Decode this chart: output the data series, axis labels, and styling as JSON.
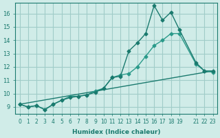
{
  "xlabel": "Humidex (Indice chaleur)",
  "ylabel": "",
  "bg_color": "#d0ece8",
  "grid_color": "#a0ccc8",
  "line_color": "#1a7a6e",
  "line_color2": "#2a9a8a",
  "xlim": [
    -0.5,
    23.5
  ],
  "ylim": [
    8.5,
    16.8
  ],
  "xticks": [
    0,
    1,
    2,
    3,
    4,
    5,
    6,
    7,
    8,
    9,
    10,
    11,
    12,
    13,
    14,
    15,
    16,
    17,
    18,
    19,
    21,
    22,
    23
  ],
  "yticks": [
    9,
    10,
    11,
    12,
    13,
    14,
    15,
    16
  ],
  "line1_x": [
    0,
    1,
    2,
    3,
    4,
    5,
    6,
    7,
    8,
    9,
    10,
    11,
    12,
    13,
    14,
    15,
    16,
    17,
    18,
    19,
    21,
    22,
    23
  ],
  "line1_y": [
    9.2,
    9.0,
    9.1,
    8.8,
    9.2,
    9.5,
    9.7,
    9.8,
    9.9,
    10.1,
    10.4,
    11.2,
    11.3,
    13.2,
    13.8,
    14.5,
    16.6,
    15.5,
    16.1,
    14.8,
    12.3,
    11.7,
    11.7
  ],
  "line2_x": [
    0,
    1,
    2,
    3,
    4,
    5,
    6,
    7,
    8,
    9,
    10,
    11,
    12,
    13,
    14,
    15,
    16,
    17,
    18,
    19,
    21,
    22,
    23
  ],
  "line2_y": [
    9.2,
    9.0,
    9.1,
    8.8,
    9.2,
    9.5,
    9.8,
    9.8,
    9.9,
    10.2,
    10.4,
    11.2,
    11.4,
    11.5,
    12.0,
    12.8,
    13.6,
    14.0,
    14.5,
    14.5,
    12.2,
    11.7,
    11.6
  ],
  "line3_x": [
    0,
    23
  ],
  "line3_y": [
    9.2,
    11.7
  ]
}
